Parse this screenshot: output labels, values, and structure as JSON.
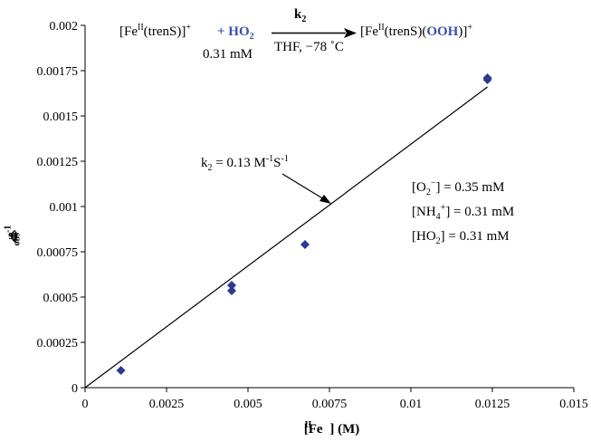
{
  "chart_data": {
    "type": "scatter",
    "xlabel": "[Fe",
    "xlabel_sup": "II",
    "xlabel_unit": "] (M)",
    "ylabel": "k",
    "ylabel_sub": "obs",
    "ylabel_unit": " (s",
    "ylabel_exp": "-1",
    "ylabel_close": ")",
    "xlim": [
      0,
      0.015
    ],
    "ylim": [
      0,
      0.002
    ],
    "x_ticks": [
      0,
      0.0025,
      0.005,
      0.0075,
      0.01,
      0.0125,
      0.015
    ],
    "x_tick_labels": [
      "0",
      "0.0025",
      "0.005",
      "0.0075",
      "0.01",
      "0.0125",
      "0.015"
    ],
    "y_ticks": [
      0,
      0.00025,
      0.0005,
      0.00075,
      0.001,
      0.00125,
      0.0015,
      0.00175,
      0.002
    ],
    "y_tick_labels": [
      "0",
      "0.00025",
      "0.0005",
      "0.00075",
      "0.001",
      "0.00125",
      "0.0015",
      "0.00175",
      "0.002"
    ],
    "points": [
      {
        "x": 0.0011,
        "y": 9.5e-05
      },
      {
        "x": 0.0045,
        "y": 0.000535
      },
      {
        "x": 0.0045,
        "y": 0.000565
      },
      {
        "x": 0.00675,
        "y": 0.00079
      },
      {
        "x": 0.01235,
        "y": 0.0017
      },
      {
        "x": 0.01235,
        "y": 0.00171
      }
    ],
    "fit_line": {
      "x": [
        0,
        0.01235
      ],
      "y": [
        0,
        0.00166
      ]
    },
    "grid": false,
    "marker_color": "#2b3a94",
    "fit_label": {
      "text": "k",
      "sub": "2",
      "value": " = 0.13 M",
      "exp1": "-1",
      "mid": "S",
      "exp2": "-1"
    },
    "conditions": [
      {
        "pre": "[O",
        "sub": "2",
        "sup": "−",
        "post": "] = 0.35 mM"
      },
      {
        "pre": "[NH",
        "sub": "4",
        "sup": "+",
        "post": "] = 0.31 mM"
      },
      {
        "pre": "[HO",
        "sub": "2",
        "sup": "",
        "post": "] = 0.31 mM"
      }
    ],
    "reaction": {
      "reactant_pre": "[Fe",
      "reactant_sup": "II",
      "reactant_mid": "(trenS)]",
      "reactant_charge": "+",
      "plus": "+ HO",
      "plus_sub": "2",
      "concentration": "0.31 mM",
      "rate_const": "k",
      "rate_const_sub": "2",
      "conditions_text": "THF, −78 ˚C",
      "product_pre": "[Fe",
      "product_sup": "II",
      "product_mid": "(trenS)(",
      "product_blue": "OOH",
      "product_post": ")]",
      "product_charge": "+"
    }
  }
}
